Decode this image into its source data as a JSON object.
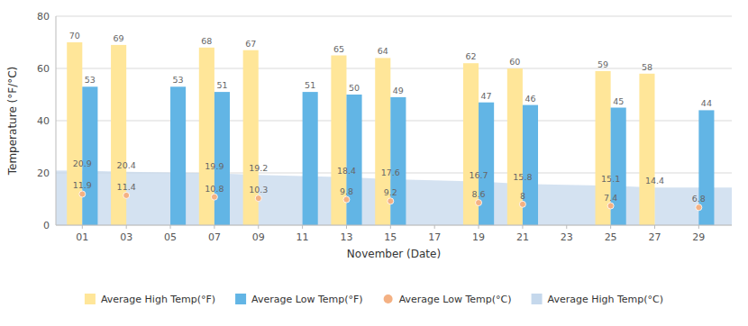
{
  "chart_data": {
    "type": "bar",
    "xlabel": "November (Date)",
    "ylabel": "Temperature (°F/°C)",
    "xlim": [
      -0.2,
      30.5
    ],
    "xticks": [
      {
        "value": 1,
        "label": "01"
      },
      {
        "value": 3,
        "label": "03"
      },
      {
        "value": 5,
        "label": "05"
      },
      {
        "value": 7,
        "label": "07"
      },
      {
        "value": 9,
        "label": "09"
      },
      {
        "value": 11,
        "label": "11"
      },
      {
        "value": 13,
        "label": "13"
      },
      {
        "value": 15,
        "label": "15"
      },
      {
        "value": 17,
        "label": "17"
      },
      {
        "value": 19,
        "label": "19"
      },
      {
        "value": 21,
        "label": "21"
      },
      {
        "value": 23,
        "label": "23"
      },
      {
        "value": 25,
        "label": "25"
      },
      {
        "value": 27,
        "label": "27"
      },
      {
        "value": 29,
        "label": "29"
      }
    ],
    "ylim": [
      0,
      80
    ],
    "yticks": [
      0,
      20,
      40,
      60,
      80
    ],
    "grid": true,
    "legend": "bottom",
    "data_labels": true,
    "series": [
      {
        "name": "Average High Temp(°F)",
        "type": "bar",
        "color": "#FFE699",
        "x": [
          1,
          3,
          7,
          9,
          13,
          15,
          19,
          21,
          25,
          27
        ],
        "values": [
          70,
          69,
          68,
          67,
          65,
          64,
          62,
          60,
          59,
          58
        ]
      },
      {
        "name": "Average Low Temp(°F)",
        "type": "bar",
        "color": "#62B5E5",
        "x": [
          1,
          5,
          7,
          11,
          13,
          15,
          19,
          21,
          25,
          29
        ],
        "values": [
          53,
          53,
          51,
          51,
          50,
          49,
          47,
          46,
          45,
          44
        ]
      },
      {
        "name": "Average Low Temp(°C)",
        "type": "scatter",
        "color": "#F4B183",
        "x": [
          1,
          3,
          7,
          9,
          13,
          15,
          19,
          21,
          25,
          29
        ],
        "values": [
          11.9,
          11.4,
          10.8,
          10.3,
          9.8,
          9.2,
          8.6,
          8.0,
          7.4,
          6.8
        ]
      },
      {
        "name": "Average High Temp(°C)",
        "type": "area",
        "color": "#C5D8EC",
        "x": [
          1,
          3,
          7,
          9,
          13,
          15,
          19,
          21,
          25,
          27
        ],
        "values": [
          20.9,
          20.4,
          19.9,
          19.2,
          18.4,
          17.6,
          16.7,
          15.8,
          15.1,
          14.4
        ]
      }
    ]
  }
}
